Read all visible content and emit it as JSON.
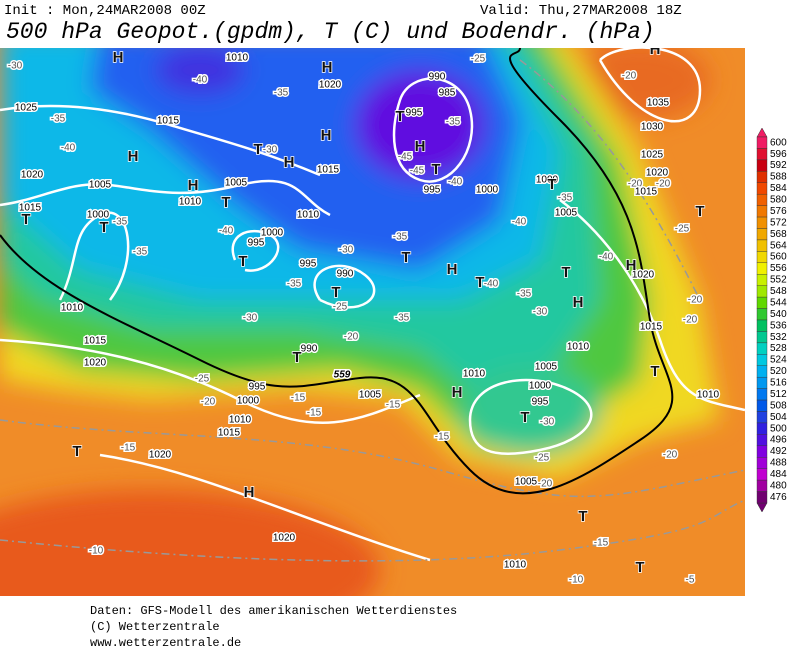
{
  "header": {
    "init": "Init : Mon,24MAR2008 00Z",
    "valid": "Valid: Thu,27MAR2008 18Z",
    "title": "500 hPa Geopot.(gpdm), T (C) und Bodendr. (hPa)"
  },
  "map": {
    "pressure_systems": [
      "H",
      "H",
      "H",
      "H",
      "H",
      "H",
      "H",
      "H",
      "H",
      "H",
      "H",
      "H",
      "H",
      "T",
      "T",
      "T",
      "T",
      "T",
      "T",
      "T",
      "T",
      "T",
      "T",
      "T",
      "T",
      "T",
      "T",
      "T",
      "T",
      "T",
      "T",
      "T"
    ],
    "isobar_labels": [
      "1010",
      "1020",
      "990",
      "985",
      "995",
      "995",
      "1000",
      "1025",
      "1015",
      "1020",
      "1005",
      "1010",
      "1005",
      "1015",
      "1010",
      "1015",
      "1000",
      "995",
      "1000",
      "995",
      "990",
      "1010",
      "1015",
      "1020",
      "990",
      "995",
      "1000",
      "1010",
      "1015",
      "1020",
      "1005",
      "1010",
      "1005",
      "1000",
      "995",
      "1010",
      "1015",
      "1020",
      "1010",
      "1005",
      "1020",
      "1010",
      "1035",
      "1030",
      "1025",
      "1020",
      "1015",
      "1005",
      "1000"
    ],
    "temperature_labels": [
      "-30",
      "-35",
      "-40",
      "-35",
      "-35",
      "-35",
      "-40",
      "-30",
      "-40",
      "-35",
      "-30",
      "-30",
      "-25",
      "-20",
      "-25",
      "-20",
      "-15",
      "-15",
      "-15",
      "-15",
      "-25",
      "-20",
      "-30",
      "-30",
      "-35",
      "-40",
      "-40",
      "-35",
      "-40",
      "-35",
      "-35",
      "-45",
      "-45",
      "-40",
      "-35",
      "-25",
      "-20",
      "-20",
      "-20",
      "-25",
      "-20",
      "-20",
      "-20",
      "-15",
      "-10",
      "-15",
      "-10",
      "-5"
    ],
    "contour_label": "559"
  },
  "colorbar": {
    "labels": [
      600,
      596,
      592,
      588,
      584,
      580,
      576,
      572,
      568,
      564,
      560,
      556,
      552,
      548,
      544,
      540,
      536,
      532,
      528,
      524,
      520,
      516,
      512,
      508,
      504,
      500,
      496,
      492,
      488,
      484,
      480,
      476
    ],
    "colors": [
      "#f01c64",
      "#e01030",
      "#c80010",
      "#e03000",
      "#f04800",
      "#f06000",
      "#f07800",
      "#f09000",
      "#f0a800",
      "#f0c000",
      "#f0d800",
      "#f0f000",
      "#c8f000",
      "#a0e800",
      "#60d800",
      "#30c830",
      "#00c060",
      "#00c890",
      "#00d0c0",
      "#00c8e0",
      "#00b0f0",
      "#0098f0",
      "#0078f0",
      "#0058e8",
      "#2040e0",
      "#3020e0",
      "#5010e0",
      "#8000e0",
      "#a000d8",
      "#c000d0",
      "#a000a0",
      "#700070"
    ]
  },
  "footer": {
    "lines": [
      "Daten: GFS-Modell des amerikanischen Wetterdienstes",
      "(C) Wetterzentrale",
      "www.wetterzentrale.de"
    ]
  }
}
